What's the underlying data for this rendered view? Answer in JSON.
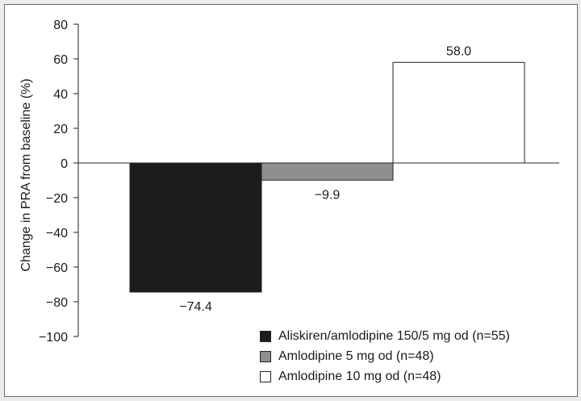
{
  "chart_data": {
    "type": "bar",
    "ylabel": "Change in PRA from baseline (%)",
    "ylim": [
      -100,
      80
    ],
    "yticks": [
      80,
      60,
      40,
      20,
      0,
      -20,
      -40,
      -60,
      -80,
      -100
    ],
    "ytick_labels": [
      "80",
      "60",
      "40",
      "20",
      "0",
      "−20",
      "−40",
      "−60",
      "−80",
      "−100"
    ],
    "series": [
      {
        "name": "Aliskiren/amlodipine 150/5 mg od (n=55)",
        "value": -74.4,
        "label": "−74.4",
        "color": "#1c1c1c"
      },
      {
        "name": "Amlodipine 5 mg od (n=48)",
        "value": -9.9,
        "label": "−9.9",
        "color": "#8f8f8f"
      },
      {
        "name": "Amlodipine 10 mg od (n=48)",
        "value": 58.0,
        "label": "58.0",
        "color": "#ffffff"
      }
    ],
    "legend_position": "bottom-right",
    "grid": false
  }
}
